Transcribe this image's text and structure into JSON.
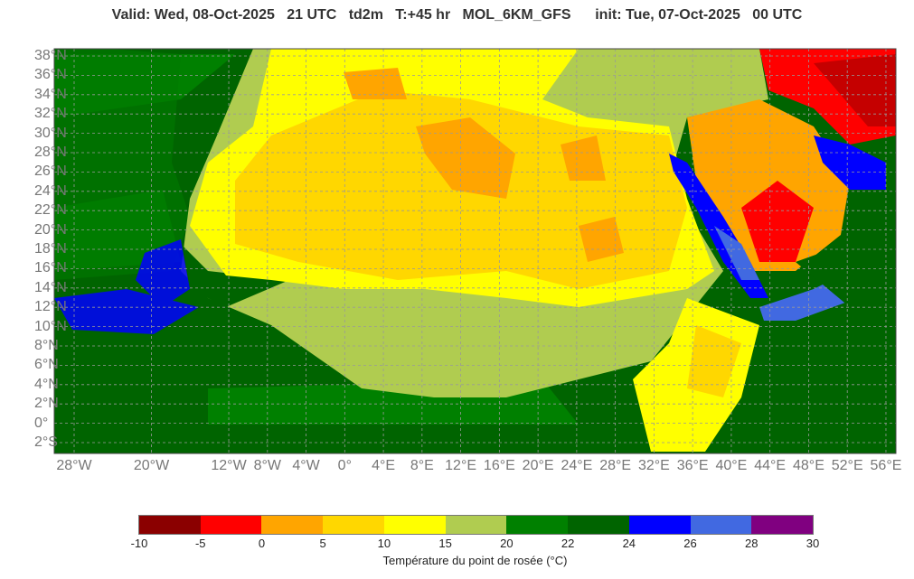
{
  "title": {
    "valid": "Valid: Wed, 08-Oct-2025",
    "hour": "21 UTC",
    "variable": "td2m",
    "lead": "T:+45 hr",
    "model": "MOL_6KM_GFS",
    "init": "init: Tue, 07-Oct-2025",
    "init_hour": "00 UTC"
  },
  "map": {
    "lat_labels": [
      "38°N",
      "36°N",
      "34°N",
      "32°N",
      "30°N",
      "28°N",
      "26°N",
      "24°N",
      "22°N",
      "20°N",
      "18°N",
      "16°N",
      "14°N",
      "12°N",
      "10°N",
      "8°N",
      "6°N",
      "4°N",
      "2°N",
      "0°",
      "2°S"
    ],
    "lon_labels": [
      {
        "label": "28°W",
        "lon": -28
      },
      {
        "label": "20°W",
        "lon": -20
      },
      {
        "label": "12°W",
        "lon": -12
      },
      {
        "label": "8°W",
        "lon": -8
      },
      {
        "label": "4°W",
        "lon": -4
      },
      {
        "label": "0°",
        "lon": 0
      },
      {
        "label": "4°E",
        "lon": 4
      },
      {
        "label": "8°E",
        "lon": 8
      },
      {
        "label": "12°E",
        "lon": 12
      },
      {
        "label": "16°E",
        "lon": 16
      },
      {
        "label": "20°E",
        "lon": 20
      },
      {
        "label": "24°E",
        "lon": 24
      },
      {
        "label": "28°E",
        "lon": 28
      },
      {
        "label": "32°E",
        "lon": 32
      },
      {
        "label": "36°E",
        "lon": 36
      },
      {
        "label": "40°E",
        "lon": 40
      },
      {
        "label": "44°E",
        "lon": 44
      },
      {
        "label": "48°E",
        "lon": 48
      },
      {
        "label": "52°E",
        "lon": 52
      },
      {
        "label": "56°E",
        "lon": 56
      }
    ],
    "extent": {
      "lon": [
        -30,
        57
      ],
      "lat": [
        -3,
        39
      ]
    }
  },
  "colorbar": {
    "label": "Température du point de rosée (°C)",
    "ticks": [
      "-10",
      "-5",
      "0",
      "5",
      "10",
      "15",
      "20",
      "22",
      "24",
      "26",
      "28",
      "30"
    ],
    "colors": [
      "#8b0000",
      "#ff0000",
      "#ffa500",
      "#ffd700",
      "#ffff00",
      "#b0cc50",
      "#008000",
      "#006400",
      "#0000ff",
      "#4169e1",
      "#800080"
    ]
  }
}
